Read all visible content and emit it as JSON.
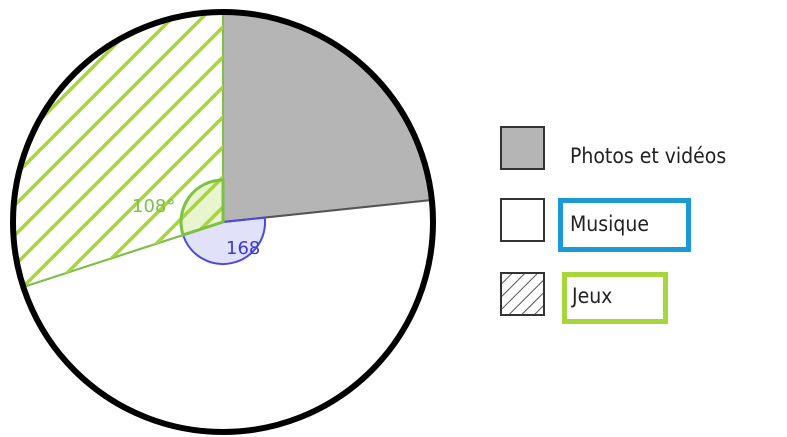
{
  "chart_data": {
    "type": "pie",
    "categories": [
      "Photos et vidéos",
      "Musique",
      "Jeux"
    ],
    "angles_deg": [
      84,
      168,
      108
    ],
    "colors": {
      "Photos et vidéos": "#b5b5b5",
      "Musique": "#ffffff",
      "Jeux": "hatch"
    },
    "annotations": [
      {
        "text": "108°",
        "refers_to": "Jeux",
        "color": "#7cc242"
      },
      {
        "text": "168",
        "refers_to": "Musique",
        "color": "#3a3ad8"
      }
    ],
    "legend": {
      "placement": "right"
    }
  },
  "legend": {
    "items": [
      {
        "label": "Photos et vidéos",
        "swatch": "gray"
      },
      {
        "label": "Musique",
        "swatch": "white",
        "highlight_color": "#1a9ad6"
      },
      {
        "label": "Jeux",
        "swatch": "hatch",
        "highlight_color": "#a6d63a"
      }
    ]
  }
}
